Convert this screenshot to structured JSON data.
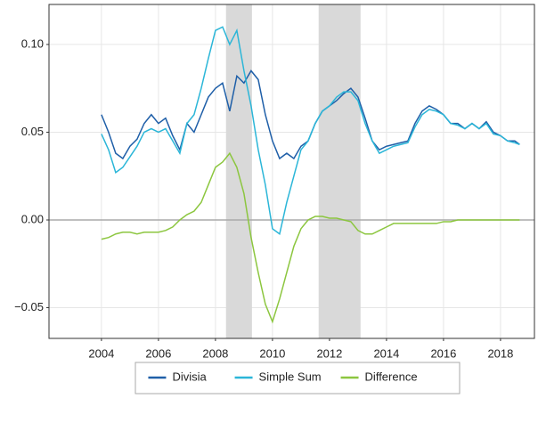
{
  "chart_data": {
    "type": "line",
    "x": [
      2004.0,
      2004.25,
      2004.5,
      2004.75,
      2005.0,
      2005.25,
      2005.5,
      2005.75,
      2006.0,
      2006.25,
      2006.5,
      2006.75,
      2007.0,
      2007.25,
      2007.5,
      2007.75,
      2008.0,
      2008.25,
      2008.5,
      2008.75,
      2009.0,
      2009.25,
      2009.5,
      2009.75,
      2010.0,
      2010.25,
      2010.5,
      2010.75,
      2011.0,
      2011.25,
      2011.5,
      2011.75,
      2012.0,
      2012.25,
      2012.5,
      2012.75,
      2013.0,
      2013.25,
      2013.5,
      2013.75,
      2014.0,
      2014.25,
      2014.5,
      2014.75,
      2015.0,
      2015.25,
      2015.5,
      2015.75,
      2016.0,
      2016.25,
      2016.5,
      2016.75,
      2017.0,
      2017.25,
      2017.5,
      2017.75,
      2018.0,
      2018.25,
      2018.5,
      2018.67
    ],
    "series": [
      {
        "name": "Divisia",
        "color": "#1f5fa8",
        "values": [
          0.06,
          0.05,
          0.038,
          0.035,
          0.042,
          0.046,
          0.055,
          0.06,
          0.055,
          0.058,
          0.048,
          0.04,
          0.055,
          0.05,
          0.06,
          0.07,
          0.075,
          0.078,
          0.062,
          0.082,
          0.078,
          0.085,
          0.08,
          0.06,
          0.045,
          0.035,
          0.038,
          0.035,
          0.042,
          0.045,
          0.055,
          0.062,
          0.065,
          0.068,
          0.072,
          0.075,
          0.07,
          0.058,
          0.045,
          0.04,
          0.042,
          0.043,
          0.044,
          0.045,
          0.055,
          0.062,
          0.065,
          0.063,
          0.06,
          0.055,
          0.055,
          0.052,
          0.055,
          0.052,
          0.056,
          0.05,
          0.048,
          0.045,
          0.045,
          0.043
        ]
      },
      {
        "name": "Simple Sum",
        "color": "#2bb6d8",
        "values": [
          0.049,
          0.04,
          0.027,
          0.03,
          0.036,
          0.042,
          0.05,
          0.052,
          0.05,
          0.052,
          0.045,
          0.038,
          0.055,
          0.06,
          0.075,
          0.092,
          0.108,
          0.11,
          0.1,
          0.108,
          0.085,
          0.065,
          0.04,
          0.02,
          -0.005,
          -0.008,
          0.01,
          0.025,
          0.04,
          0.045,
          0.055,
          0.062,
          0.065,
          0.07,
          0.073,
          0.073,
          0.068,
          0.055,
          0.045,
          0.038,
          0.04,
          0.042,
          0.043,
          0.044,
          0.053,
          0.06,
          0.063,
          0.062,
          0.06,
          0.055,
          0.054,
          0.052,
          0.055,
          0.052,
          0.055,
          0.049,
          0.048,
          0.045,
          0.044,
          0.043
        ]
      },
      {
        "name": "Difference",
        "color": "#8cc63f",
        "values": [
          -0.011,
          -0.01,
          -0.008,
          -0.007,
          -0.007,
          -0.008,
          -0.007,
          -0.007,
          -0.007,
          -0.006,
          -0.004,
          0.0,
          0.003,
          0.005,
          0.01,
          0.02,
          0.03,
          0.033,
          0.038,
          0.03,
          0.015,
          -0.01,
          -0.03,
          -0.048,
          -0.058,
          -0.045,
          -0.03,
          -0.015,
          -0.005,
          0.0,
          0.002,
          0.002,
          0.001,
          0.001,
          0.0,
          -0.001,
          -0.006,
          -0.008,
          -0.008,
          -0.006,
          -0.004,
          -0.002,
          -0.002,
          -0.002,
          -0.002,
          -0.002,
          -0.002,
          -0.002,
          -0.001,
          -0.001,
          0.0,
          0.0,
          0.0,
          0.0,
          0.0,
          0.0,
          0.0,
          0.0,
          0.0,
          0.0
        ]
      }
    ],
    "xlim": [
      2002.16,
      2019.19
    ],
    "ylim": [
      -0.0675,
      0.1228
    ],
    "xticks": [
      2004,
      2006,
      2008,
      2010,
      2012,
      2014,
      2016,
      2018
    ],
    "yticks": [
      {
        "value": -0.05,
        "label": "−0.05"
      },
      {
        "value": 0,
        "label": "0.00"
      },
      {
        "value": 0.05,
        "label": "0.05"
      },
      {
        "value": 0.1,
        "label": "0.10"
      }
    ],
    "shaded_regions": [
      [
        2008.37,
        2009.28
      ],
      [
        2011.62,
        2013.09
      ]
    ],
    "reference_line": 0,
    "grid": true,
    "legend": "bottom"
  }
}
